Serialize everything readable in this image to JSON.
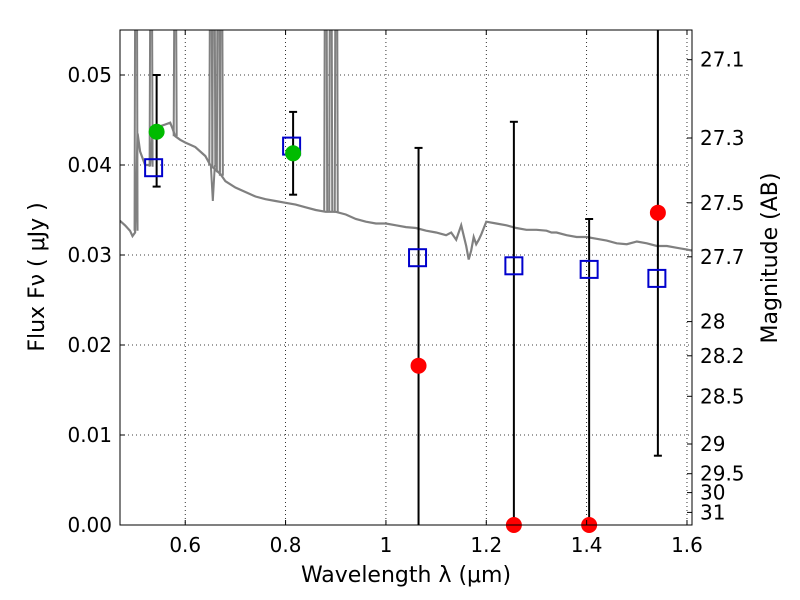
{
  "chart_data": {
    "type": "scatter",
    "xlabel": "Wavelength  λ (μm)",
    "ylabel": "Flux  Fν  ( μJy )",
    "ylabel_right": "Magnitude (AB)",
    "xlim": [
      0.47,
      1.61
    ],
    "ylim": [
      0.0,
      0.055
    ],
    "grid": true,
    "x_ticks": [
      0.6,
      0.8,
      1.0,
      1.2,
      1.4,
      1.6
    ],
    "x_tick_labels": [
      "0.6",
      "0.8",
      "1",
      "1.2",
      "1.4",
      "1.6"
    ],
    "y_ticks": [
      0.0,
      0.01,
      0.02,
      0.03,
      0.04,
      0.05
    ],
    "y_tick_labels": [
      "0.00",
      "0.01",
      "0.02",
      "0.03",
      "0.04",
      "0.05"
    ],
    "mag_ticks": [
      {
        "label": "27.1",
        "flux": 0.0517
      },
      {
        "label": "27.3",
        "flux": 0.043
      },
      {
        "label": "27.5",
        "flux": 0.0358
      },
      {
        "label": "27.7",
        "flux": 0.0298
      },
      {
        "label": "28",
        "flux": 0.0226
      },
      {
        "label": "28.2",
        "flux": 0.0188
      },
      {
        "label": "28.5",
        "flux": 0.0143
      },
      {
        "label": "29",
        "flux": 0.009
      },
      {
        "label": "29.5",
        "flux": 0.0057
      },
      {
        "label": "30",
        "flux": 0.0036
      },
      {
        "label": "31",
        "flux": 0.0014
      }
    ],
    "series": [
      {
        "name": "model_spectrum",
        "style": "line",
        "color": "#808080",
        "points": [
          [
            0.47,
            0.0338
          ],
          [
            0.48,
            0.0333
          ],
          [
            0.49,
            0.0327
          ],
          [
            0.495,
            0.0321
          ],
          [
            0.5,
            0.0325
          ],
          [
            0.505,
            0.0435
          ],
          [
            0.51,
            0.0415
          ],
          [
            0.52,
            0.04
          ],
          [
            0.53,
            0.04
          ],
          [
            0.535,
            0.044
          ],
          [
            0.54,
            0.044
          ],
          [
            0.55,
            0.0443
          ],
          [
            0.56,
            0.0445
          ],
          [
            0.57,
            0.0447
          ],
          [
            0.575,
            0.044
          ],
          [
            0.58,
            0.0432
          ],
          [
            0.59,
            0.0428
          ],
          [
            0.6,
            0.0425
          ],
          [
            0.62,
            0.042
          ],
          [
            0.64,
            0.041
          ],
          [
            0.65,
            0.04
          ],
          [
            0.66,
            0.0395
          ],
          [
            0.67,
            0.039
          ],
          [
            0.68,
            0.0382
          ],
          [
            0.7,
            0.0375
          ],
          [
            0.72,
            0.037
          ],
          [
            0.74,
            0.0365
          ],
          [
            0.76,
            0.0362
          ],
          [
            0.78,
            0.036
          ],
          [
            0.8,
            0.0358
          ],
          [
            0.82,
            0.0356
          ],
          [
            0.84,
            0.0353
          ],
          [
            0.86,
            0.035
          ],
          [
            0.88,
            0.0348
          ],
          [
            0.9,
            0.0348
          ],
          [
            0.92,
            0.0345
          ],
          [
            0.94,
            0.034
          ],
          [
            0.96,
            0.0337
          ],
          [
            0.98,
            0.0335
          ],
          [
            1.0,
            0.0335
          ],
          [
            1.02,
            0.0333
          ],
          [
            1.04,
            0.0331
          ],
          [
            1.06,
            0.033
          ],
          [
            1.08,
            0.0327
          ],
          [
            1.1,
            0.0325
          ],
          [
            1.12,
            0.0322
          ],
          [
            1.13,
            0.0325
          ],
          [
            1.14,
            0.0317
          ],
          [
            1.15,
            0.0333
          ],
          [
            1.16,
            0.031
          ],
          [
            1.165,
            0.0295
          ],
          [
            1.17,
            0.0305
          ],
          [
            1.175,
            0.032
          ],
          [
            1.18,
            0.0312
          ],
          [
            1.185,
            0.0317
          ],
          [
            1.19,
            0.0323
          ],
          [
            1.2,
            0.0337
          ],
          [
            1.22,
            0.0335
          ],
          [
            1.24,
            0.0333
          ],
          [
            1.26,
            0.033
          ],
          [
            1.28,
            0.0328
          ],
          [
            1.3,
            0.0328
          ],
          [
            1.32,
            0.0327
          ],
          [
            1.33,
            0.0325
          ],
          [
            1.34,
            0.0325
          ],
          [
            1.36,
            0.0322
          ],
          [
            1.38,
            0.032
          ],
          [
            1.4,
            0.032
          ],
          [
            1.42,
            0.0318
          ],
          [
            1.44,
            0.0316
          ],
          [
            1.46,
            0.0313
          ],
          [
            1.48,
            0.0312
          ],
          [
            1.5,
            0.0315
          ],
          [
            1.52,
            0.0313
          ],
          [
            1.54,
            0.031
          ],
          [
            1.56,
            0.031
          ],
          [
            1.58,
            0.0308
          ],
          [
            1.6,
            0.0306
          ],
          [
            1.61,
            0.0305
          ]
        ],
        "emission_lines": [
          {
            "x": 0.502,
            "peak": 0.056,
            "base": 0.0327
          },
          {
            "x": 0.532,
            "peak": 0.056,
            "base": 0.0398
          },
          {
            "x": 0.58,
            "peak": 0.056,
            "base": 0.0432
          },
          {
            "x": 0.651,
            "peak": 0.056,
            "base": 0.04
          },
          {
            "x": 0.657,
            "peak": 0.056,
            "base": 0.0398
          },
          {
            "x": 0.666,
            "peak": 0.056,
            "base": 0.0392
          },
          {
            "x": 0.672,
            "peak": 0.056,
            "base": 0.0388
          },
          {
            "x": 0.88,
            "peak": 0.056,
            "base": 0.0348
          },
          {
            "x": 0.89,
            "peak": 0.056,
            "base": 0.0348
          },
          {
            "x": 0.901,
            "peak": 0.056,
            "base": 0.0347
          }
        ],
        "absorption_lines": [
          {
            "x": 0.655,
            "trough": 0.036,
            "base": 0.04
          }
        ]
      },
      {
        "name": "model_photometry",
        "style": "open-square",
        "color": "#0000cc",
        "points": [
          [
            0.537,
            0.0397
          ],
          [
            0.812,
            0.0421
          ],
          [
            1.063,
            0.0297
          ],
          [
            1.255,
            0.0288
          ],
          [
            1.405,
            0.0284
          ],
          [
            1.54,
            0.0274
          ]
        ]
      },
      {
        "name": "observed_detections",
        "style": "filled-circle",
        "color": "#00bb00",
        "points": [
          {
            "x": 0.543,
            "y": 0.0437,
            "err_low": 0.0376,
            "err_high": 0.05
          },
          {
            "x": 0.815,
            "y": 0.0413,
            "err_low": 0.0367,
            "err_high": 0.0459
          }
        ]
      },
      {
        "name": "observed_nondetections",
        "style": "filled-circle",
        "color": "#ff0000",
        "points": [
          {
            "x": 1.065,
            "y": 0.0177,
            "err_low": 0.0,
            "err_high": 0.0419
          },
          {
            "x": 1.255,
            "y": 0.0,
            "err_low": 0.0,
            "err_high": 0.0448
          },
          {
            "x": 1.405,
            "y": 0.0,
            "err_low": 0.0,
            "err_high": 0.034
          },
          {
            "x": 1.542,
            "y": 0.0347,
            "err_low": 0.0077,
            "err_high": 0.056
          }
        ]
      }
    ]
  }
}
